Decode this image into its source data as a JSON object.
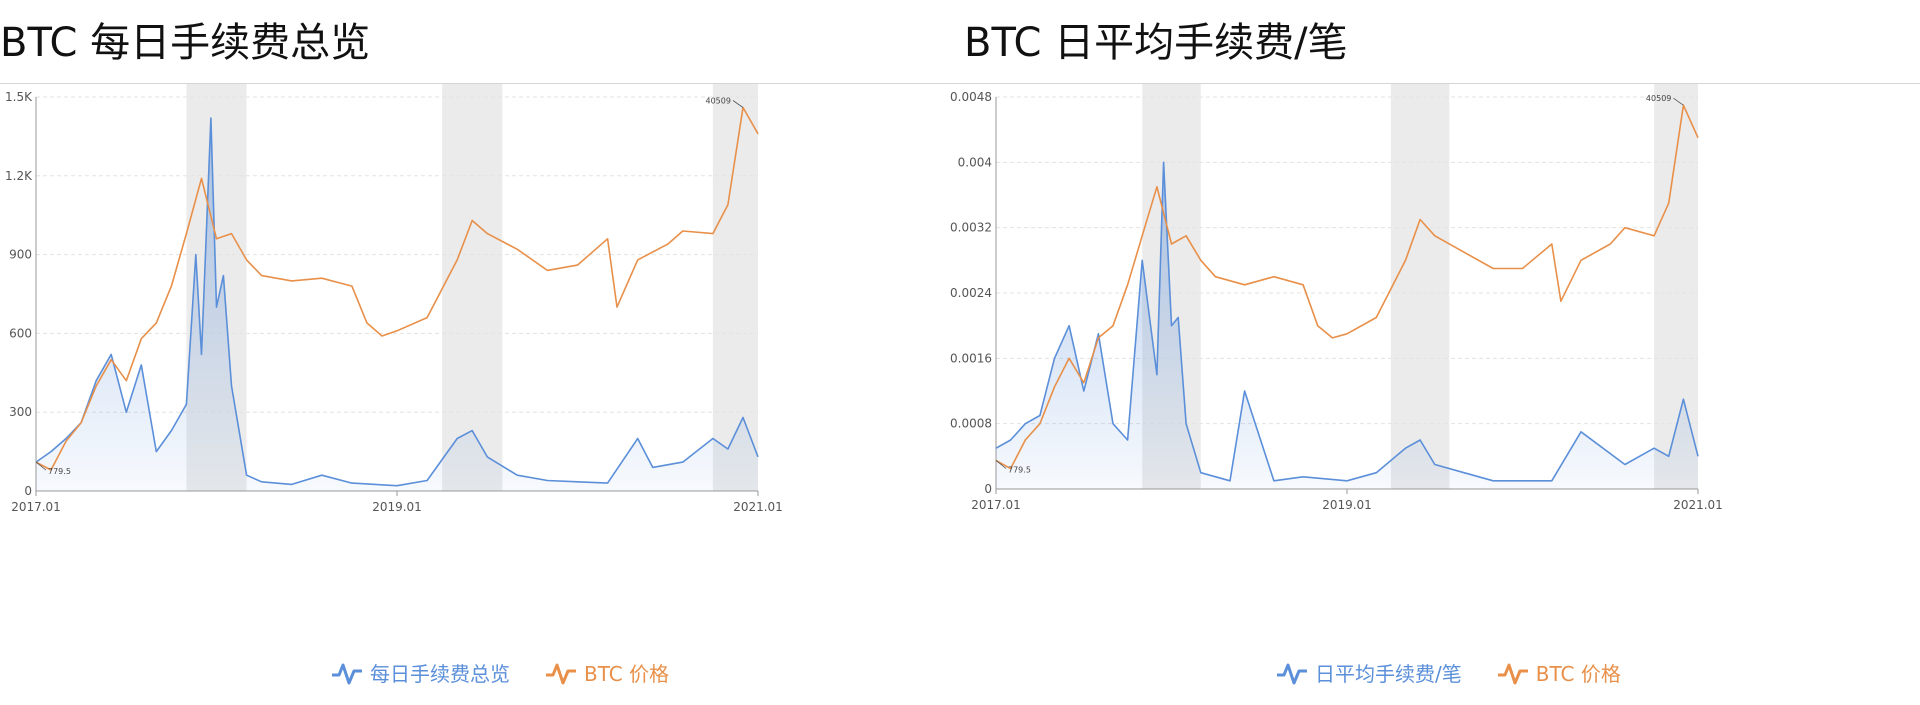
{
  "colors": {
    "fee": "#5b8fd9",
    "price": "#e8904a",
    "shade": "#ebebeb",
    "grid": "#e3e3e3"
  },
  "panels": [
    {
      "title": "BTC 每日手续费总览",
      "legend": {
        "fee": "每日手续费总览",
        "price": "BTC 价格"
      },
      "icons": {
        "fee": "wave-line-icon",
        "price": "wave-line-icon"
      }
    },
    {
      "title": "BTC 日平均手续费/笔",
      "legend": {
        "fee": "日平均手续费/笔",
        "price": "BTC 价格"
      },
      "icons": {
        "fee": "wave-line-icon",
        "price": "wave-line-icon"
      }
    }
  ],
  "chart_data": [
    {
      "type": "line",
      "title": "BTC 每日手续费总览",
      "x_range": [
        "2017.01",
        "2021.01"
      ],
      "x_ticks": [
        "2017.01",
        "2019.01",
        "2021.01"
      ],
      "y_ticks": [
        "0",
        "300",
        "600",
        "900",
        "1.2K",
        "1.5K"
      ],
      "ylim": [
        0,
        1500
      ],
      "grid": "horizontal",
      "legend_position": "bottom-center",
      "shaded_periods": [
        [
          "2017.11",
          "2018.03"
        ],
        [
          "2019.04",
          "2019.08"
        ],
        [
          "2020.10",
          "2021.01"
        ]
      ],
      "annotations": [
        {
          "text": "40509",
          "x": "2020.12",
          "series": "BTC 价格"
        },
        {
          "text": "779.5",
          "x": "2017.01",
          "series": "BTC 价格"
        }
      ],
      "series": [
        {
          "name": "每日手续费总览",
          "area": true,
          "x": [
            "2017.01",
            "2017.02",
            "2017.03",
            "2017.04",
            "2017.05",
            "2017.06",
            "2017.07",
            "2017.08",
            "2017.09",
            "2017.10",
            "2017.11",
            "2017.11.20",
            "2017.12",
            "2017.12.20",
            "2018.01",
            "2018.01.15",
            "2018.02",
            "2018.03",
            "2018.04",
            "2018.06",
            "2018.08",
            "2018.10",
            "2019.01",
            "2019.03",
            "2019.05",
            "2019.06",
            "2019.07",
            "2019.09",
            "2019.11",
            "2020.01",
            "2020.03",
            "2020.05",
            "2020.06",
            "2020.08",
            "2020.10",
            "2020.11",
            "2020.12",
            "2021.01"
          ],
          "values": [
            110,
            150,
            200,
            260,
            420,
            520,
            300,
            480,
            150,
            230,
            330,
            900,
            520,
            1420,
            700,
            820,
            400,
            60,
            35,
            25,
            60,
            30,
            20,
            40,
            200,
            230,
            130,
            60,
            40,
            35,
            30,
            200,
            90,
            110,
            200,
            160,
            280,
            130
          ]
        },
        {
          "name": "BTC 价格",
          "x": [
            "2017.01",
            "2017.02",
            "2017.03",
            "2017.04",
            "2017.05",
            "2017.06",
            "2017.07",
            "2017.08",
            "2017.09",
            "2017.10",
            "2017.11",
            "2017.12",
            "2018.01",
            "2018.02",
            "2018.03",
            "2018.04",
            "2018.06",
            "2018.08",
            "2018.10",
            "2018.11",
            "2018.12",
            "2019.01",
            "2019.03",
            "2019.05",
            "2019.06",
            "2019.07",
            "2019.09",
            "2019.11",
            "2020.01",
            "2020.03",
            "2020.03.20",
            "2020.05",
            "2020.07",
            "2020.08",
            "2020.10",
            "2020.11",
            "2020.12",
            "2021.01"
          ],
          "values": [
            110,
            80,
            190,
            260,
            400,
            500,
            420,
            580,
            640,
            780,
            980,
            1190,
            960,
            980,
            880,
            820,
            800,
            810,
            780,
            640,
            590,
            610,
            660,
            880,
            1030,
            980,
            920,
            840,
            860,
            960,
            700,
            880,
            940,
            990,
            980,
            1090,
            1460,
            1360
          ]
        }
      ]
    },
    {
      "type": "line",
      "title": "BTC 日平均手续费/笔",
      "x_range": [
        "2017.01",
        "2021.01"
      ],
      "x_ticks": [
        "2017.01",
        "2019.01",
        "2021.01"
      ],
      "y_ticks": [
        "0",
        "0.0008",
        "0.0016",
        "0.0024",
        "0.0032",
        "0.004",
        "0.0048"
      ],
      "ylim": [
        0,
        0.0048
      ],
      "grid": "horizontal",
      "legend_position": "bottom-center",
      "shaded_periods": [
        [
          "2017.11",
          "2018.03"
        ],
        [
          "2019.04",
          "2019.08"
        ],
        [
          "2020.10",
          "2021.01"
        ]
      ],
      "annotations": [
        {
          "text": "40509",
          "x": "2020.12",
          "series": "BTC 价格"
        },
        {
          "text": "779.5",
          "x": "2017.01",
          "series": "BTC 价格"
        }
      ],
      "series": [
        {
          "name": "日平均手续费/笔",
          "area": true,
          "x": [
            "2017.01",
            "2017.02",
            "2017.03",
            "2017.04",
            "2017.05",
            "2017.06",
            "2017.07",
            "2017.08",
            "2017.09",
            "2017.10",
            "2017.11",
            "2017.12",
            "2017.12.15",
            "2018.01",
            "2018.01.15",
            "2018.02",
            "2018.03",
            "2018.05",
            "2018.06",
            "2018.08",
            "2018.10",
            "2019.01",
            "2019.03",
            "2019.05",
            "2019.06",
            "2019.07",
            "2019.09",
            "2019.11",
            "2020.01",
            "2020.03",
            "2020.05",
            "2020.08",
            "2020.10",
            "2020.11",
            "2020.12",
            "2021.01"
          ],
          "values": [
            0.0005,
            0.0006,
            0.0008,
            0.0009,
            0.0016,
            0.002,
            0.0012,
            0.0019,
            0.0008,
            0.0006,
            0.0028,
            0.0014,
            0.004,
            0.002,
            0.0021,
            0.0008,
            0.0002,
            0.0001,
            0.0012,
            0.0001,
            0.00015,
            0.0001,
            0.0002,
            0.0005,
            0.0006,
            0.0003,
            0.0002,
            0.0001,
            0.0001,
            0.0001,
            0.0007,
            0.0003,
            0.0005,
            0.0004,
            0.0011,
            0.0004
          ]
        },
        {
          "name": "BTC 价格",
          "x": [
            "2017.01",
            "2017.02",
            "2017.03",
            "2017.04",
            "2017.05",
            "2017.06",
            "2017.07",
            "2017.08",
            "2017.09",
            "2017.10",
            "2017.11",
            "2017.12",
            "2018.01",
            "2018.02",
            "2018.03",
            "2018.04",
            "2018.06",
            "2018.08",
            "2018.10",
            "2018.11",
            "2018.12",
            "2019.01",
            "2019.03",
            "2019.05",
            "2019.06",
            "2019.07",
            "2019.09",
            "2019.11",
            "2020.01",
            "2020.03",
            "2020.03.20",
            "2020.05",
            "2020.07",
            "2020.08",
            "2020.10",
            "2020.11",
            "2020.12",
            "2021.01"
          ],
          "values": [
            0.00035,
            0.00025,
            0.0006,
            0.0008,
            0.00125,
            0.0016,
            0.0013,
            0.00185,
            0.002,
            0.0025,
            0.0031,
            0.0037,
            0.003,
            0.0031,
            0.0028,
            0.0026,
            0.0025,
            0.0026,
            0.0025,
            0.002,
            0.00185,
            0.0019,
            0.0021,
            0.0028,
            0.0033,
            0.0031,
            0.0029,
            0.0027,
            0.0027,
            0.003,
            0.0023,
            0.0028,
            0.003,
            0.0032,
            0.0031,
            0.0035,
            0.0047,
            0.0043
          ]
        }
      ]
    }
  ]
}
